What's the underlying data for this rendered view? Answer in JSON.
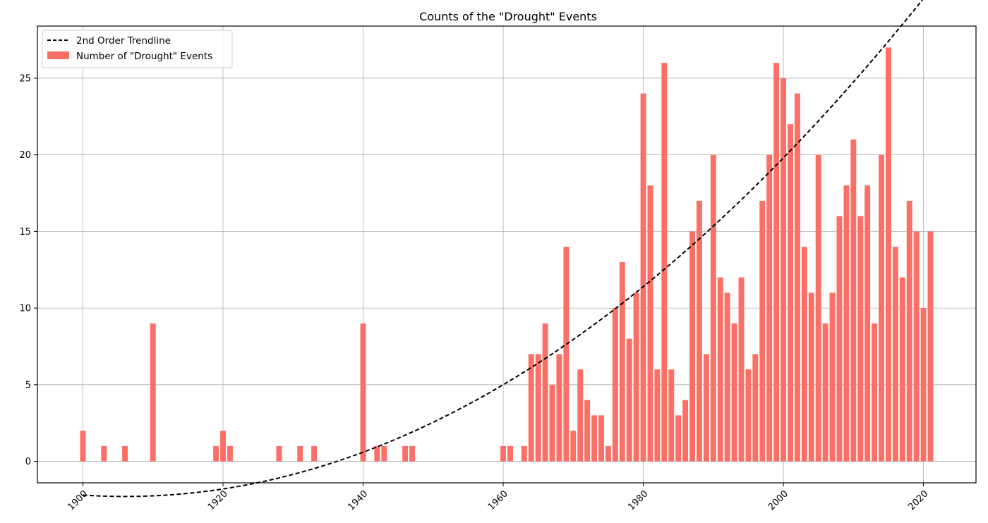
{
  "chart_data": {
    "type": "bar",
    "title": "Counts of the \"Drought\" Events",
    "xlabel": "",
    "ylabel": "",
    "xlim": [
      1893.5,
      2027.5
    ],
    "ylim": [
      -1.4,
      28.4
    ],
    "x_ticks": [
      1900,
      1920,
      1940,
      1960,
      1980,
      2000,
      2020
    ],
    "y_ticks": [
      0,
      5,
      10,
      15,
      20,
      25
    ],
    "grid": true,
    "legend_position": "top-left",
    "bar_color": "#fa7066",
    "trend_color": "#000000",
    "series": [
      {
        "name": "Number of \"Drought\" Events",
        "kind": "bar",
        "x": [
          1900,
          1903,
          1906,
          1910,
          1919,
          1920,
          1921,
          1928,
          1931,
          1933,
          1940,
          1942,
          1943,
          1946,
          1947,
          1960,
          1961,
          1963,
          1964,
          1965,
          1966,
          1967,
          1968,
          1969,
          1970,
          1971,
          1972,
          1973,
          1974,
          1975,
          1976,
          1977,
          1978,
          1979,
          1980,
          1981,
          1982,
          1983,
          1984,
          1985,
          1986,
          1987,
          1988,
          1989,
          1990,
          1991,
          1992,
          1993,
          1994,
          1995,
          1996,
          1997,
          1998,
          1999,
          2000,
          2001,
          2002,
          2003,
          2004,
          2005,
          2006,
          2007,
          2008,
          2009,
          2010,
          2011,
          2012,
          2013,
          2014,
          2015,
          2016,
          2017,
          2018,
          2019,
          2020,
          2021
        ],
        "values": [
          2,
          1,
          1,
          9,
          1,
          2,
          1,
          1,
          1,
          1,
          9,
          1,
          1,
          1,
          1,
          1,
          1,
          1,
          7,
          7,
          9,
          5,
          7,
          14,
          2,
          6,
          4,
          3,
          3,
          1,
          10,
          13,
          8,
          11,
          24,
          18,
          6,
          26,
          6,
          3,
          4,
          15,
          17,
          7,
          20,
          12,
          11,
          9,
          12,
          6,
          7,
          17,
          20,
          26,
          25,
          22,
          24,
          14,
          11,
          20,
          9,
          11,
          16,
          18,
          21,
          16,
          18,
          9,
          20,
          27,
          14,
          12,
          17,
          15,
          10,
          15
        ]
      },
      {
        "name": "2nd Order Trendline",
        "kind": "trendline",
        "degree": 2,
        "x_range": [
          1900,
          2021
        ],
        "coefficients": [
          0.0025,
          -9.53,
          9079.8
        ]
      }
    ]
  },
  "legend": {
    "items": [
      {
        "label": "2nd Order Trendline",
        "kind": "line"
      },
      {
        "label": "Number of \"Drought\" Events",
        "kind": "bar"
      }
    ]
  }
}
